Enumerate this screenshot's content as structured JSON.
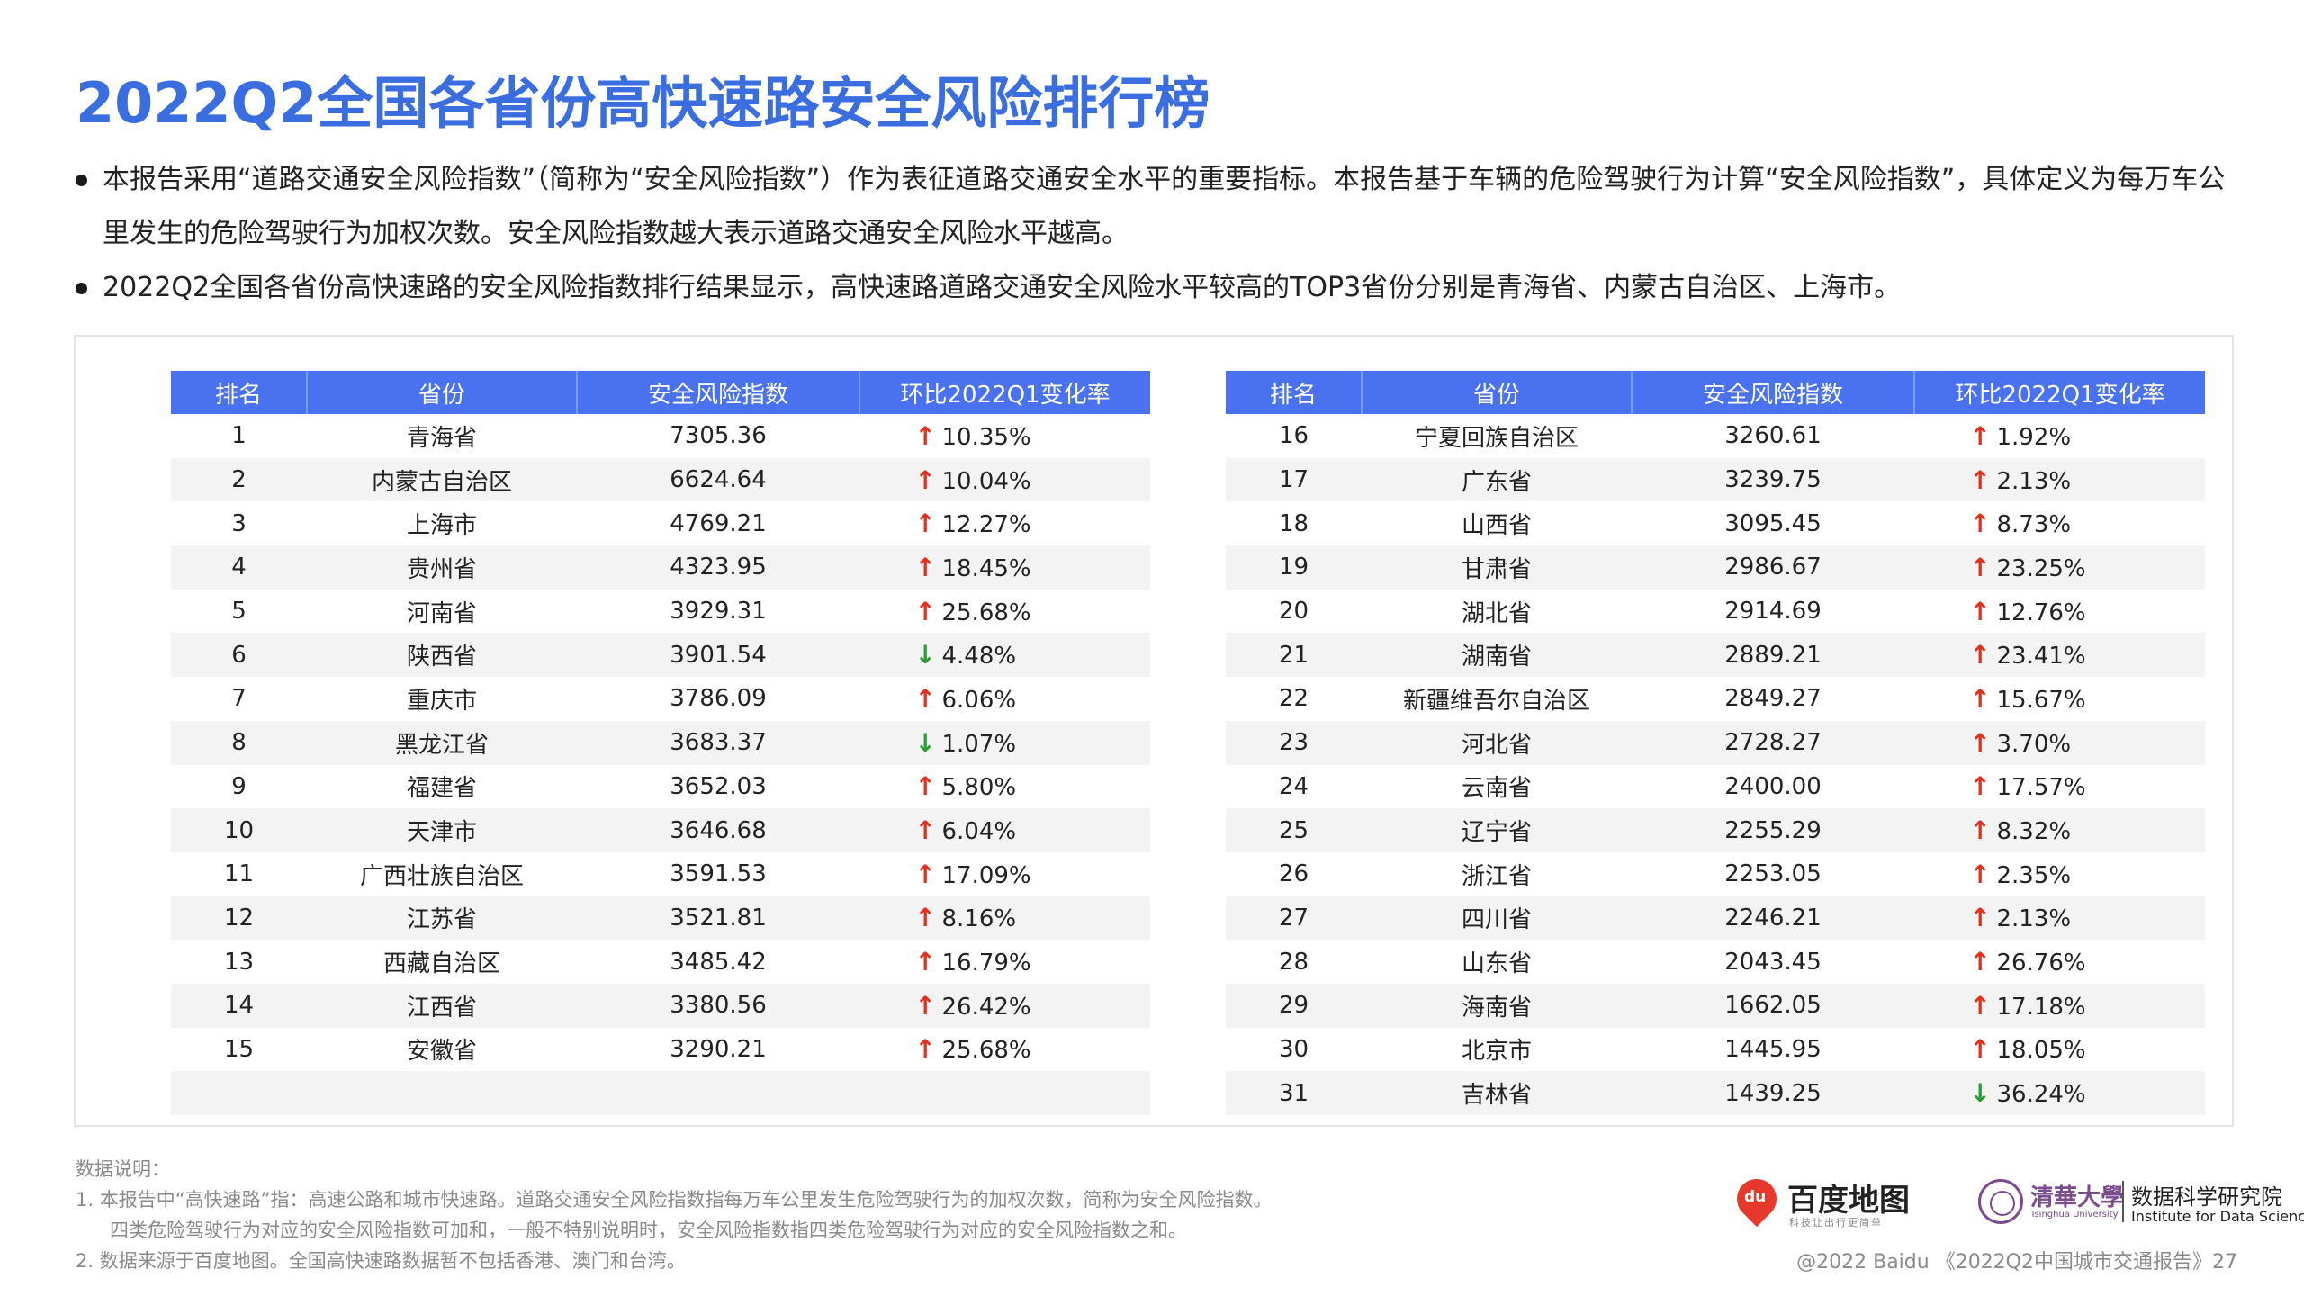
{
  "title": "2022Q2全国各省份高快速路安全风险排行榜",
  "bullets": [
    "本报告采用“道路交通安全风险指数”（简称为“安全风险指数”）作为表征道路交通安全水平的重要指标。本报告基于车辆的危险驾驶行为计算“安全风险指数”，具体定义为每万车公里发生的危险驾驶行为加权次数。安全风险指数越大表示道路交通安全风险水平越高。",
    "2022Q2全国各省份高快速路的安全风险指数排行结果显示，高快速路道路交通安全风险水平较高的TOP3省份分别是青海省、内蒙古自治区、上海市。"
  ],
  "table": {
    "headers": [
      "排名",
      "省份",
      "安全风险指数",
      "环比2022Q1变化率"
    ],
    "left_rows": [
      {
        "rank": "1",
        "province": "青海省",
        "index": "7305.36",
        "dir": "up",
        "change": "10.35%"
      },
      {
        "rank": "2",
        "province": "内蒙古自治区",
        "index": "6624.64",
        "dir": "up",
        "change": "10.04%"
      },
      {
        "rank": "3",
        "province": "上海市",
        "index": "4769.21",
        "dir": "up",
        "change": "12.27%"
      },
      {
        "rank": "4",
        "province": "贵州省",
        "index": "4323.95",
        "dir": "up",
        "change": "18.45%"
      },
      {
        "rank": "5",
        "province": "河南省",
        "index": "3929.31",
        "dir": "up",
        "change": "25.68%"
      },
      {
        "rank": "6",
        "province": "陕西省",
        "index": "3901.54",
        "dir": "down",
        "change": "4.48%"
      },
      {
        "rank": "7",
        "province": "重庆市",
        "index": "3786.09",
        "dir": "up",
        "change": "6.06%"
      },
      {
        "rank": "8",
        "province": "黑龙江省",
        "index": "3683.37",
        "dir": "down",
        "change": "1.07%"
      },
      {
        "rank": "9",
        "province": "福建省",
        "index": "3652.03",
        "dir": "up",
        "change": "5.80%"
      },
      {
        "rank": "10",
        "province": "天津市",
        "index": "3646.68",
        "dir": "up",
        "change": "6.04%"
      },
      {
        "rank": "11",
        "province": "广西壮族自治区",
        "index": "3591.53",
        "dir": "up",
        "change": "17.09%"
      },
      {
        "rank": "12",
        "province": "江苏省",
        "index": "3521.81",
        "dir": "up",
        "change": "8.16%"
      },
      {
        "rank": "13",
        "province": "西藏自治区",
        "index": "3485.42",
        "dir": "up",
        "change": "16.79%"
      },
      {
        "rank": "14",
        "province": "江西省",
        "index": "3380.56",
        "dir": "up",
        "change": "26.42%"
      },
      {
        "rank": "15",
        "province": "安徽省",
        "index": "3290.21",
        "dir": "up",
        "change": "25.68%"
      },
      {
        "rank": "",
        "province": "",
        "index": "",
        "dir": "",
        "change": ""
      }
    ],
    "right_rows": [
      {
        "rank": "16",
        "province": "宁夏回族自治区",
        "index": "3260.61",
        "dir": "up",
        "change": "1.92%"
      },
      {
        "rank": "17",
        "province": "广东省",
        "index": "3239.75",
        "dir": "up",
        "change": "2.13%"
      },
      {
        "rank": "18",
        "province": "山西省",
        "index": "3095.45",
        "dir": "up",
        "change": "8.73%"
      },
      {
        "rank": "19",
        "province": "甘肃省",
        "index": "2986.67",
        "dir": "up",
        "change": "23.25%"
      },
      {
        "rank": "20",
        "province": "湖北省",
        "index": "2914.69",
        "dir": "up",
        "change": "12.76%"
      },
      {
        "rank": "21",
        "province": "湖南省",
        "index": "2889.21",
        "dir": "up",
        "change": "23.41%"
      },
      {
        "rank": "22",
        "province": "新疆维吾尔自治区",
        "index": "2849.27",
        "dir": "up",
        "change": "15.67%"
      },
      {
        "rank": "23",
        "province": "河北省",
        "index": "2728.27",
        "dir": "up",
        "change": "3.70%"
      },
      {
        "rank": "24",
        "province": "云南省",
        "index": "2400.00",
        "dir": "up",
        "change": "17.57%"
      },
      {
        "rank": "25",
        "province": "辽宁省",
        "index": "2255.29",
        "dir": "up",
        "change": "8.32%"
      },
      {
        "rank": "26",
        "province": "浙江省",
        "index": "2253.05",
        "dir": "up",
        "change": "2.35%"
      },
      {
        "rank": "27",
        "province": "四川省",
        "index": "2246.21",
        "dir": "up",
        "change": "2.13%"
      },
      {
        "rank": "28",
        "province": "山东省",
        "index": "2043.45",
        "dir": "up",
        "change": "26.76%"
      },
      {
        "rank": "29",
        "province": "海南省",
        "index": "1662.05",
        "dir": "up",
        "change": "17.18%"
      },
      {
        "rank": "30",
        "province": "北京市",
        "index": "1445.95",
        "dir": "up",
        "change": "18.05%"
      },
      {
        "rank": "31",
        "province": "吉林省",
        "index": "1439.25",
        "dir": "down",
        "change": "36.24%"
      }
    ],
    "arrow_up_color": "#e0301e",
    "arrow_down_color": "#2a9d3a",
    "header_color": "#4a72f0"
  },
  "notes": {
    "heading": "数据说明：",
    "line1": "1.   本报告中“高快速路”指：高速公路和城市快速路。道路交通安全风险指数指每万车公里发生危险驾驶行为的加权次数，简称为安全风险指数。",
    "line1b": "四类危险驾驶行为对应的安全风险指数可加和，一般不特别说明时，安全风险指数指四类危险驾驶行为对应的安全风险指数之和。",
    "line2": "2.   数据来源于百度地图。全国高快速路数据暂不包括香港、澳门和台湾。"
  },
  "logos": {
    "baidu_pin": "du",
    "baidu_name": "百度地图",
    "baidu_sub": "科技让出行更简单",
    "thu_cn": "清華大學",
    "thu_en": "Tsinghua University",
    "ids_cn": "数据科学研究院",
    "ids_en": "Institute for Data Science"
  },
  "footer": "@2022 Baidu 《2022Q2中国城市交通报告》27"
}
